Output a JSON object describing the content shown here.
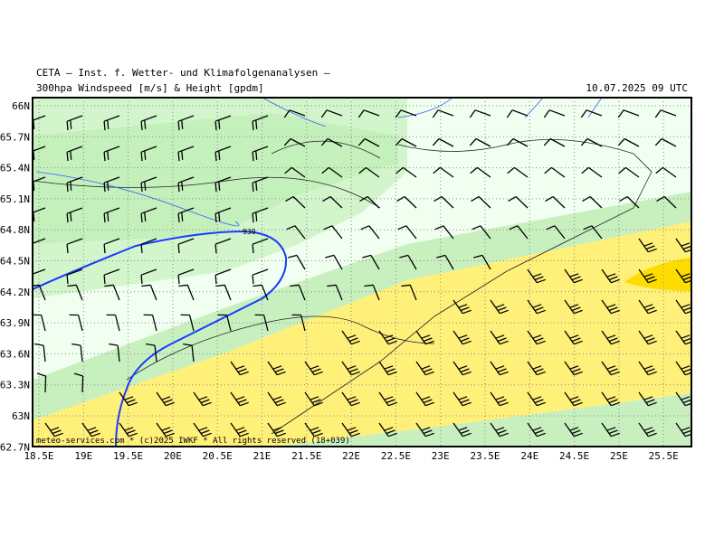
{
  "header": {
    "title": "CETA – Inst. f. Wetter- und Klimafolgenanalysen –",
    "subtitle": "300hpa Windspeed [m/s] & Height [gpdm]",
    "date": "10.07.2025 09 UTC"
  },
  "map": {
    "lat_labels": [
      "66N",
      "65.7N",
      "65.4N",
      "65.1N",
      "64.8N",
      "64.5N",
      "64.2N",
      "63.9N",
      "63.6N",
      "63.3N",
      "63N",
      "62.7N"
    ],
    "lon_labels": [
      "18.5E",
      "19E",
      "19.5E",
      "20E",
      "20.5E",
      "21E",
      "21.5E",
      "22E",
      "22.5E",
      "23E",
      "23.5E",
      "24E",
      "24.5E",
      "25E",
      "25.5E"
    ],
    "contour_label": "939",
    "footer": "meteo-services.com * (c)2025 IWKF * All rights reserved (18+039)"
  }
}
